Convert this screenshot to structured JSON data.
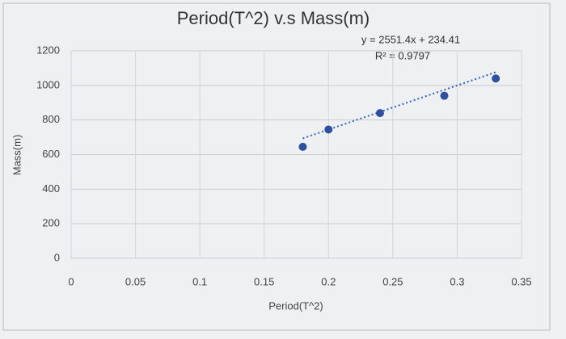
{
  "chart_data": {
    "type": "scatter",
    "title": "Period(T^2) v.s Mass(m)",
    "x_label": "Period(T^2)",
    "y_label": "Mass(m)",
    "series": [
      {
        "name": "Mass",
        "color": "#2f4f9f",
        "x": [
          0.18,
          0.2,
          0.24,
          0.29,
          0.33
        ],
        "values": [
          645,
          745,
          840,
          940,
          1040
        ]
      }
    ],
    "trendline": {
      "slope": 2551.4,
      "intercept": 234.41,
      "equation": "y = 2551.4x + 234.41",
      "r_squared": "R² = 0.9797",
      "color": "#2f5fbf"
    },
    "xlim": [
      0,
      0.35
    ],
    "xticks": [
      0,
      0.05,
      0.1,
      0.15,
      0.2,
      0.25,
      0.3,
      0.35
    ],
    "ylim": [
      0,
      1200
    ],
    "yticks": [
      0,
      200,
      400,
      600,
      800,
      1000,
      1200
    ],
    "grid": true
  }
}
